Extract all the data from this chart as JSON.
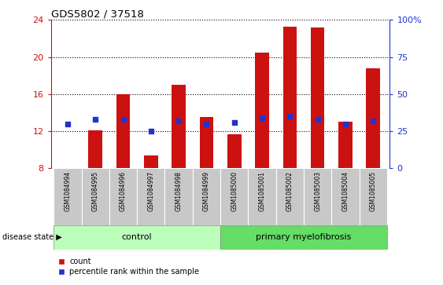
{
  "title": "GDS5802 / 37518",
  "samples": [
    "GSM1084994",
    "GSM1084995",
    "GSM1084996",
    "GSM1084997",
    "GSM1084998",
    "GSM1084999",
    "GSM1085000",
    "GSM1085001",
    "GSM1085002",
    "GSM1085003",
    "GSM1085004",
    "GSM1085005"
  ],
  "counts": [
    8.05,
    12.1,
    16.0,
    9.4,
    17.0,
    13.5,
    11.7,
    20.5,
    23.3,
    23.2,
    13.0,
    18.8
  ],
  "percentiles": [
    30,
    33,
    33,
    25,
    32,
    30,
    31,
    34,
    35,
    33,
    30,
    32
  ],
  "ylim_left": [
    8,
    24
  ],
  "ylim_right": [
    0,
    100
  ],
  "yticks_left": [
    8,
    12,
    16,
    20,
    24
  ],
  "yticks_right": [
    0,
    25,
    50,
    75,
    100
  ],
  "ytick_right_labels": [
    "0",
    "25",
    "50",
    "75",
    "100%"
  ],
  "bar_color": "#cc1111",
  "dot_color": "#2233cc",
  "bar_width": 0.5,
  "bg_color": "#ffffff",
  "control_color": "#bbffbb",
  "pmf_color": "#66dd66",
  "group_label_control": "control",
  "group_label_pmf": "primary myelofibrosis",
  "disease_state_label": "disease state",
  "legend_count": "count",
  "legend_percentile": "percentile rank within the sample",
  "tick_color_left": "#cc1111",
  "tick_color_right": "#2233cc",
  "n_control": 6,
  "n_pmf": 6
}
